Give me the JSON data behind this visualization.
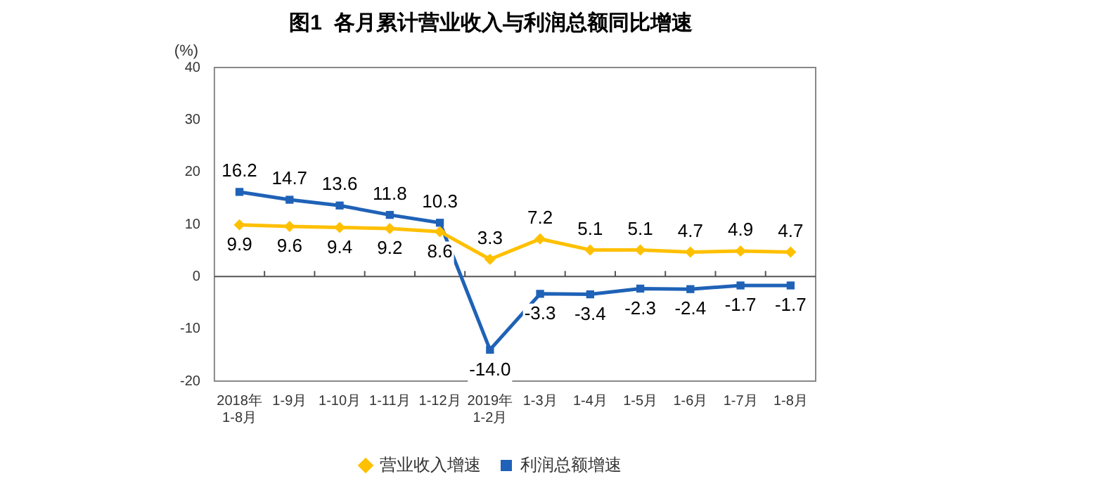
{
  "chart_data": {
    "type": "line",
    "title": "图1  各月累计营业收入与利润总额同比增速",
    "ylabel": "(%)",
    "categories": [
      "2018年\n1-8月",
      "1-9月",
      "1-10月",
      "1-11月",
      "1-12月",
      "2019年\n1-2月",
      "1-3月",
      "1-4月",
      "1-5月",
      "1-6月",
      "1-7月",
      "1-8月"
    ],
    "series": [
      {
        "name": "营业收入增速",
        "color": "#ffc000",
        "marker": "diamond",
        "values": [
          9.9,
          9.6,
          9.4,
          9.2,
          8.6,
          3.3,
          7.2,
          5.1,
          5.1,
          4.7,
          4.9,
          4.7
        ],
        "value_labels": [
          "9.9",
          "9.6",
          "9.4",
          "9.2",
          "8.6",
          "3.3",
          "7.2",
          "5.1",
          "5.1",
          "4.7",
          "4.9",
          "4.7"
        ]
      },
      {
        "name": "利润总额增速",
        "color": "#1f62b7",
        "marker": "square",
        "values": [
          16.2,
          14.7,
          13.6,
          11.8,
          10.3,
          -14.0,
          -3.3,
          -3.4,
          -2.3,
          -2.4,
          -1.7,
          -1.7
        ],
        "value_labels": [
          "16.2",
          "14.7",
          "13.6",
          "11.8",
          "10.3",
          "-14.0",
          "-3.3",
          "-3.4",
          "-2.3",
          "-2.4",
          "-1.7",
          "-1.7"
        ]
      }
    ],
    "ylim": [
      -20,
      40
    ],
    "yticks": [
      -20,
      -10,
      0,
      10,
      20,
      30,
      40
    ],
    "ref_lines": [
      {
        "axis": "y",
        "value": 0
      }
    ],
    "legend": "bottom",
    "grid": false,
    "line_style": "solid"
  }
}
